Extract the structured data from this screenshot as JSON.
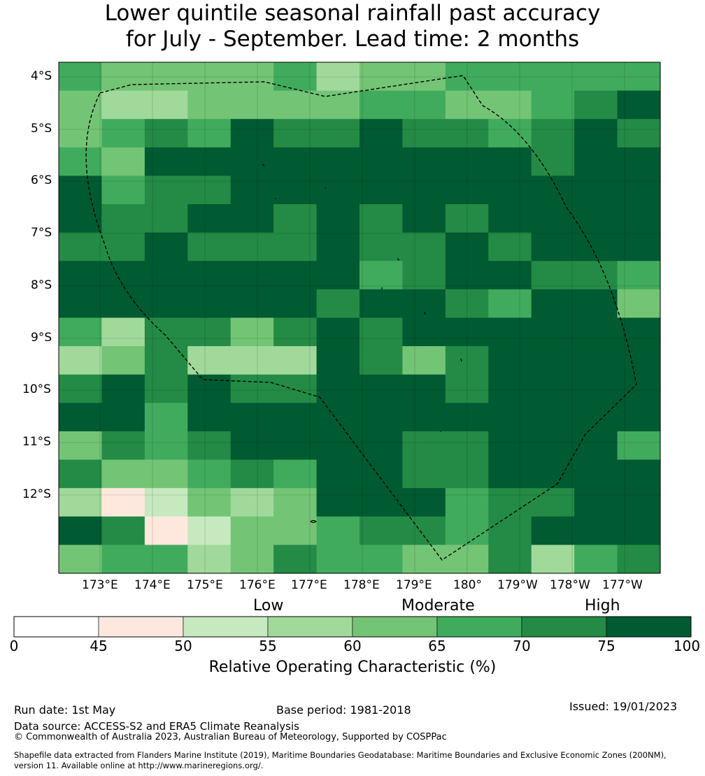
{
  "title": {
    "line1": "Lower quintile seasonal rainfall past accuracy",
    "line2": "for July - September. Lead time: 2 months"
  },
  "map": {
    "lat_labels": [
      "4°S",
      "5°S",
      "6°S",
      "7°S",
      "8°S",
      "9°S",
      "10°S",
      "11°S",
      "12°S"
    ],
    "lon_labels": [
      "173°E",
      "174°E",
      "175°E",
      "176°E",
      "177°E",
      "178°E",
      "179°E",
      "180°",
      "179°W",
      "178°W",
      "177°W"
    ],
    "color_scale": [
      "#ffffff",
      "#fee8dd",
      "#c7e9c0",
      "#a1d99b",
      "#74c476",
      "#41ab5d",
      "#238b45",
      "#005a32"
    ],
    "roc_grid": [
      [
        5,
        4,
        4,
        4,
        4,
        5,
        3,
        4,
        4,
        5,
        5,
        5,
        5,
        5
      ],
      [
        4,
        3,
        3,
        4,
        4,
        4,
        4,
        5,
        5,
        4,
        4,
        5,
        6,
        7
      ],
      [
        4,
        5,
        6,
        5,
        7,
        6,
        6,
        7,
        6,
        6,
        5,
        6,
        7,
        6
      ],
      [
        5,
        4,
        7,
        7,
        7,
        7,
        7,
        7,
        7,
        7,
        7,
        6,
        7,
        7
      ],
      [
        7,
        5,
        6,
        6,
        7,
        7,
        7,
        7,
        7,
        7,
        7,
        7,
        7,
        7
      ],
      [
        7,
        6,
        6,
        7,
        7,
        6,
        7,
        6,
        7,
        6,
        7,
        7,
        7,
        7
      ],
      [
        6,
        6,
        7,
        6,
        6,
        6,
        7,
        6,
        6,
        7,
        6,
        7,
        7,
        7
      ],
      [
        7,
        7,
        7,
        7,
        7,
        7,
        7,
        5,
        6,
        7,
        7,
        6,
        6,
        5
      ],
      [
        7,
        7,
        7,
        7,
        7,
        7,
        6,
        7,
        7,
        6,
        5,
        7,
        7,
        4
      ],
      [
        5,
        3,
        6,
        6,
        4,
        6,
        7,
        6,
        7,
        7,
        7,
        7,
        7,
        7
      ],
      [
        3,
        4,
        6,
        3,
        3,
        3,
        7,
        6,
        4,
        6,
        7,
        7,
        7,
        7
      ],
      [
        6,
        7,
        6,
        7,
        6,
        6,
        7,
        7,
        7,
        6,
        7,
        7,
        7,
        7
      ],
      [
        7,
        7,
        5,
        7,
        7,
        7,
        7,
        7,
        7,
        7,
        7,
        7,
        7,
        7
      ],
      [
        4,
        6,
        5,
        6,
        7,
        7,
        7,
        7,
        6,
        6,
        7,
        7,
        7,
        5
      ],
      [
        6,
        4,
        4,
        5,
        6,
        5,
        7,
        7,
        6,
        6,
        7,
        7,
        7,
        7
      ],
      [
        3,
        1,
        2,
        4,
        3,
        4,
        7,
        7,
        7,
        5,
        6,
        6,
        7,
        7
      ],
      [
        7,
        6,
        1,
        2,
        4,
        4,
        5,
        6,
        6,
        5,
        6,
        7,
        7,
        7
      ],
      [
        4,
        5,
        5,
        3,
        4,
        6,
        5,
        5,
        4,
        4,
        6,
        3,
        5,
        6
      ]
    ]
  },
  "colorbar": {
    "headers": [
      "Low",
      "Moderate",
      "High"
    ],
    "ticks": [
      "0",
      "45",
      "50",
      "55",
      "60",
      "65",
      "70",
      "75",
      "100"
    ],
    "label": "Relative Operating Characteristic (%)"
  },
  "footer": {
    "run_date": "Run date: 1st May",
    "base_period": "Base period: 1981-2018",
    "issued": "Issued: 19/01/2023",
    "data_source": "Data source: ACCESS-S2 and ERA5 Climate Reanalysis",
    "copyright": "© Commonwealth of Australia 2023, Australian Bureau of Meteorology, Supported by COSPPac",
    "shapefile_line1": "Shapefile data extracted from Flanders Marine Institute (2019), Maritime Boundaries Geodatabase: Maritime Boundaries and Exclusive Economic Zones (200NM),",
    "shapefile_line2": "version 11. Available online at http://www.marineregions.org/."
  }
}
